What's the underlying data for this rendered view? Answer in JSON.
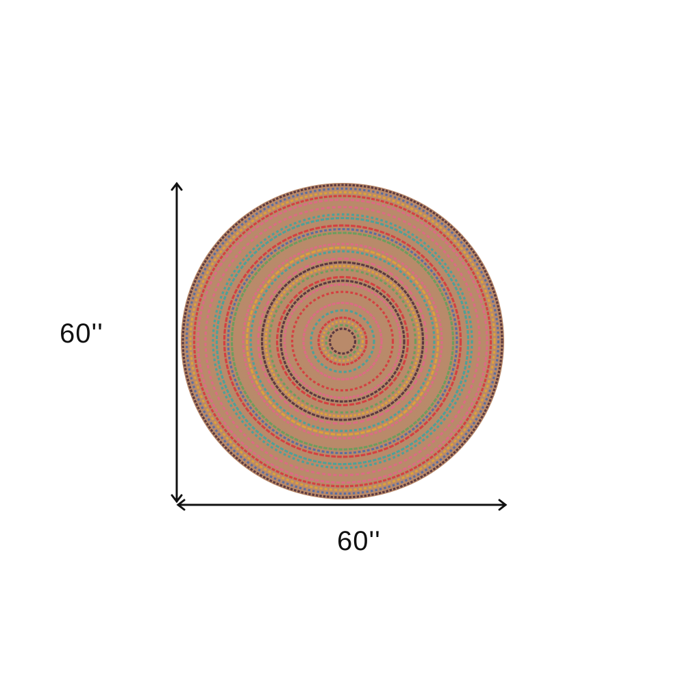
{
  "dimensions": {
    "height_label": "60''",
    "width_label": "60''"
  },
  "product": {
    "shape": "round braided rug",
    "colors": {
      "jute": "#b98a6a",
      "red": "#d8323a",
      "pink": "#e2658a",
      "teal": "#3aa5a0",
      "yellow": "#e3a533",
      "blue": "#4a67a8",
      "dark": "#4a2a3a",
      "green": "#5fa05a"
    }
  }
}
